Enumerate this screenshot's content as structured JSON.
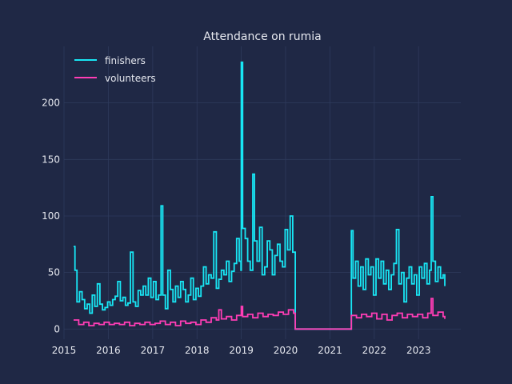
{
  "chart_data": {
    "type": "line",
    "title": "Attendance on rumia",
    "xlabel": "",
    "ylabel": "",
    "xlim": [
      "2015-01-01",
      "2023-12-15"
    ],
    "ylim": [
      -9,
      250
    ],
    "grid": true,
    "legend_position": "upper-left",
    "x_ticks": [
      "2015",
      "2016",
      "2017",
      "2018",
      "2019",
      "2020",
      "2021",
      "2022",
      "2023"
    ],
    "y_ticks": [
      0,
      50,
      100,
      150,
      200
    ],
    "colors": {
      "background": "#1f2845",
      "grid": "#2e3a5c",
      "text": "#e6e8ef"
    },
    "series": [
      {
        "name": "finishers",
        "color": "#18e6f4",
        "points": [
          [
            "2015-03-21",
            73
          ],
          [
            "2015-04-01",
            52
          ],
          [
            "2015-04-18",
            24
          ],
          [
            "2015-05-09",
            33
          ],
          [
            "2015-05-30",
            26
          ],
          [
            "2015-06-20",
            18
          ],
          [
            "2015-07-11",
            22
          ],
          [
            "2015-08-01",
            14
          ],
          [
            "2015-08-22",
            30
          ],
          [
            "2015-09-12",
            20
          ],
          [
            "2015-10-03",
            40
          ],
          [
            "2015-10-24",
            22
          ],
          [
            "2015-11-14",
            17
          ],
          [
            "2015-12-05",
            19
          ],
          [
            "2015-12-26",
            24
          ],
          [
            "2016-01-16",
            21
          ],
          [
            "2016-02-06",
            26
          ],
          [
            "2016-02-27",
            29
          ],
          [
            "2016-03-19",
            42
          ],
          [
            "2016-04-09",
            25
          ],
          [
            "2016-04-30",
            28
          ],
          [
            "2016-05-21",
            21
          ],
          [
            "2016-06-11",
            23
          ],
          [
            "2016-07-02",
            68
          ],
          [
            "2016-07-23",
            24
          ],
          [
            "2016-08-13",
            20
          ],
          [
            "2016-09-03",
            34
          ],
          [
            "2016-09-24",
            30
          ],
          [
            "2016-10-15",
            38
          ],
          [
            "2016-11-05",
            30
          ],
          [
            "2016-11-26",
            45
          ],
          [
            "2016-12-17",
            28
          ],
          [
            "2017-01-07",
            42
          ],
          [
            "2017-01-28",
            26
          ],
          [
            "2017-02-18",
            30
          ],
          [
            "2017-03-11",
            109
          ],
          [
            "2017-03-25",
            30
          ],
          [
            "2017-04-15",
            18
          ],
          [
            "2017-05-06",
            52
          ],
          [
            "2017-05-27",
            35
          ],
          [
            "2017-06-17",
            24
          ],
          [
            "2017-07-08",
            38
          ],
          [
            "2017-07-29",
            28
          ],
          [
            "2017-08-19",
            42
          ],
          [
            "2017-09-09",
            35
          ],
          [
            "2017-09-30",
            24
          ],
          [
            "2017-10-21",
            30
          ],
          [
            "2017-11-11",
            45
          ],
          [
            "2017-12-02",
            26
          ],
          [
            "2017-12-23",
            36
          ],
          [
            "2018-01-13",
            29
          ],
          [
            "2018-02-03",
            38
          ],
          [
            "2018-02-24",
            55
          ],
          [
            "2018-03-17",
            40
          ],
          [
            "2018-04-07",
            48
          ],
          [
            "2018-04-28",
            45
          ],
          [
            "2018-05-19",
            86
          ],
          [
            "2018-06-09",
            36
          ],
          [
            "2018-06-30",
            44
          ],
          [
            "2018-07-21",
            52
          ],
          [
            "2018-08-11",
            48
          ],
          [
            "2018-09-01",
            60
          ],
          [
            "2018-09-22",
            42
          ],
          [
            "2018-10-13",
            51
          ],
          [
            "2018-11-03",
            58
          ],
          [
            "2018-11-24",
            80
          ],
          [
            "2018-12-15",
            60
          ],
          [
            "2018-12-29",
            52
          ],
          [
            "2019-01-01",
            236
          ],
          [
            "2019-01-12",
            89
          ],
          [
            "2019-02-02",
            80
          ],
          [
            "2019-02-23",
            60
          ],
          [
            "2019-03-16",
            52
          ],
          [
            "2019-04-06",
            137
          ],
          [
            "2019-04-20",
            78
          ],
          [
            "2019-05-11",
            60
          ],
          [
            "2019-06-01",
            90
          ],
          [
            "2019-06-22",
            48
          ],
          [
            "2019-07-13",
            55
          ],
          [
            "2019-08-03",
            78
          ],
          [
            "2019-08-24",
            70
          ],
          [
            "2019-09-14",
            48
          ],
          [
            "2019-10-05",
            65
          ],
          [
            "2019-10-26",
            75
          ],
          [
            "2019-11-16",
            60
          ],
          [
            "2019-12-07",
            55
          ],
          [
            "2019-12-28",
            88
          ],
          [
            "2020-01-18",
            70
          ],
          [
            "2020-02-08",
            100
          ],
          [
            "2020-02-29",
            68
          ],
          [
            "2020-03-14",
            68
          ],
          [
            "2020-03-21",
            0
          ],
          [
            "2021-06-19",
            0
          ],
          [
            "2021-06-26",
            87
          ],
          [
            "2021-07-10",
            45
          ],
          [
            "2021-07-31",
            60
          ],
          [
            "2021-08-21",
            38
          ],
          [
            "2021-09-11",
            55
          ],
          [
            "2021-10-02",
            35
          ],
          [
            "2021-10-23",
            62
          ],
          [
            "2021-11-13",
            48
          ],
          [
            "2021-12-04",
            55
          ],
          [
            "2021-12-25",
            30
          ],
          [
            "2022-01-15",
            62
          ],
          [
            "2022-02-05",
            45
          ],
          [
            "2022-02-26",
            60
          ],
          [
            "2022-03-19",
            40
          ],
          [
            "2022-04-09",
            52
          ],
          [
            "2022-04-30",
            35
          ],
          [
            "2022-05-21",
            48
          ],
          [
            "2022-06-11",
            58
          ],
          [
            "2022-07-02",
            88
          ],
          [
            "2022-07-23",
            40
          ],
          [
            "2022-08-13",
            50
          ],
          [
            "2022-09-03",
            24
          ],
          [
            "2022-09-24",
            45
          ],
          [
            "2022-10-15",
            55
          ],
          [
            "2022-11-05",
            40
          ],
          [
            "2022-11-26",
            48
          ],
          [
            "2022-12-17",
            30
          ],
          [
            "2023-01-07",
            55
          ],
          [
            "2023-01-28",
            45
          ],
          [
            "2023-02-18",
            58
          ],
          [
            "2023-03-11",
            40
          ],
          [
            "2023-04-01",
            52
          ],
          [
            "2023-04-15",
            117
          ],
          [
            "2023-04-29",
            60
          ],
          [
            "2023-05-20",
            42
          ],
          [
            "2023-06-10",
            55
          ],
          [
            "2023-07-01",
            45
          ],
          [
            "2023-07-22",
            48
          ],
          [
            "2023-08-05",
            38
          ]
        ]
      },
      {
        "name": "volunteers",
        "color": "#ff3db5",
        "points": [
          [
            "2015-03-21",
            8
          ],
          [
            "2015-05-02",
            4
          ],
          [
            "2015-06-13",
            6
          ],
          [
            "2015-07-25",
            3
          ],
          [
            "2015-09-05",
            5
          ],
          [
            "2015-10-17",
            4
          ],
          [
            "2015-11-28",
            6
          ],
          [
            "2016-01-09",
            4
          ],
          [
            "2016-02-20",
            5
          ],
          [
            "2016-04-02",
            4
          ],
          [
            "2016-05-14",
            6
          ],
          [
            "2016-06-25",
            3
          ],
          [
            "2016-08-06",
            5
          ],
          [
            "2016-09-17",
            4
          ],
          [
            "2016-10-29",
            6
          ],
          [
            "2016-12-10",
            4
          ],
          [
            "2017-01-21",
            5
          ],
          [
            "2017-03-04",
            7
          ],
          [
            "2017-04-15",
            4
          ],
          [
            "2017-05-27",
            6
          ],
          [
            "2017-07-08",
            3
          ],
          [
            "2017-08-19",
            7
          ],
          [
            "2017-09-30",
            5
          ],
          [
            "2017-11-11",
            6
          ],
          [
            "2017-12-23",
            4
          ],
          [
            "2018-02-03",
            8
          ],
          [
            "2018-03-17",
            6
          ],
          [
            "2018-04-28",
            10
          ],
          [
            "2018-06-09",
            8
          ],
          [
            "2018-06-30",
            17
          ],
          [
            "2018-07-21",
            9
          ],
          [
            "2018-09-01",
            11
          ],
          [
            "2018-10-13",
            8
          ],
          [
            "2018-11-24",
            12
          ],
          [
            "2019-01-01",
            20
          ],
          [
            "2019-01-12",
            11
          ],
          [
            "2019-02-23",
            13
          ],
          [
            "2019-04-06",
            10
          ],
          [
            "2019-05-18",
            14
          ],
          [
            "2019-06-29",
            11
          ],
          [
            "2019-08-10",
            13
          ],
          [
            "2019-09-21",
            12
          ],
          [
            "2019-11-02",
            15
          ],
          [
            "2019-12-14",
            13
          ],
          [
            "2020-01-25",
            17
          ],
          [
            "2020-03-07",
            14
          ],
          [
            "2020-03-21",
            0
          ],
          [
            "2021-06-19",
            0
          ],
          [
            "2021-06-26",
            12
          ],
          [
            "2021-08-07",
            10
          ],
          [
            "2021-09-18",
            13
          ],
          [
            "2021-10-30",
            11
          ],
          [
            "2021-12-11",
            14
          ],
          [
            "2022-01-22",
            9
          ],
          [
            "2022-03-05",
            13
          ],
          [
            "2022-04-16",
            8
          ],
          [
            "2022-05-28",
            12
          ],
          [
            "2022-07-09",
            14
          ],
          [
            "2022-08-20",
            10
          ],
          [
            "2022-10-01",
            13
          ],
          [
            "2022-11-12",
            11
          ],
          [
            "2022-12-24",
            13
          ],
          [
            "2023-02-04",
            10
          ],
          [
            "2023-03-18",
            14
          ],
          [
            "2023-04-15",
            27
          ],
          [
            "2023-04-29",
            12
          ],
          [
            "2023-06-10",
            15
          ],
          [
            "2023-07-22",
            11
          ],
          [
            "2023-08-05",
            9
          ]
        ]
      }
    ]
  }
}
